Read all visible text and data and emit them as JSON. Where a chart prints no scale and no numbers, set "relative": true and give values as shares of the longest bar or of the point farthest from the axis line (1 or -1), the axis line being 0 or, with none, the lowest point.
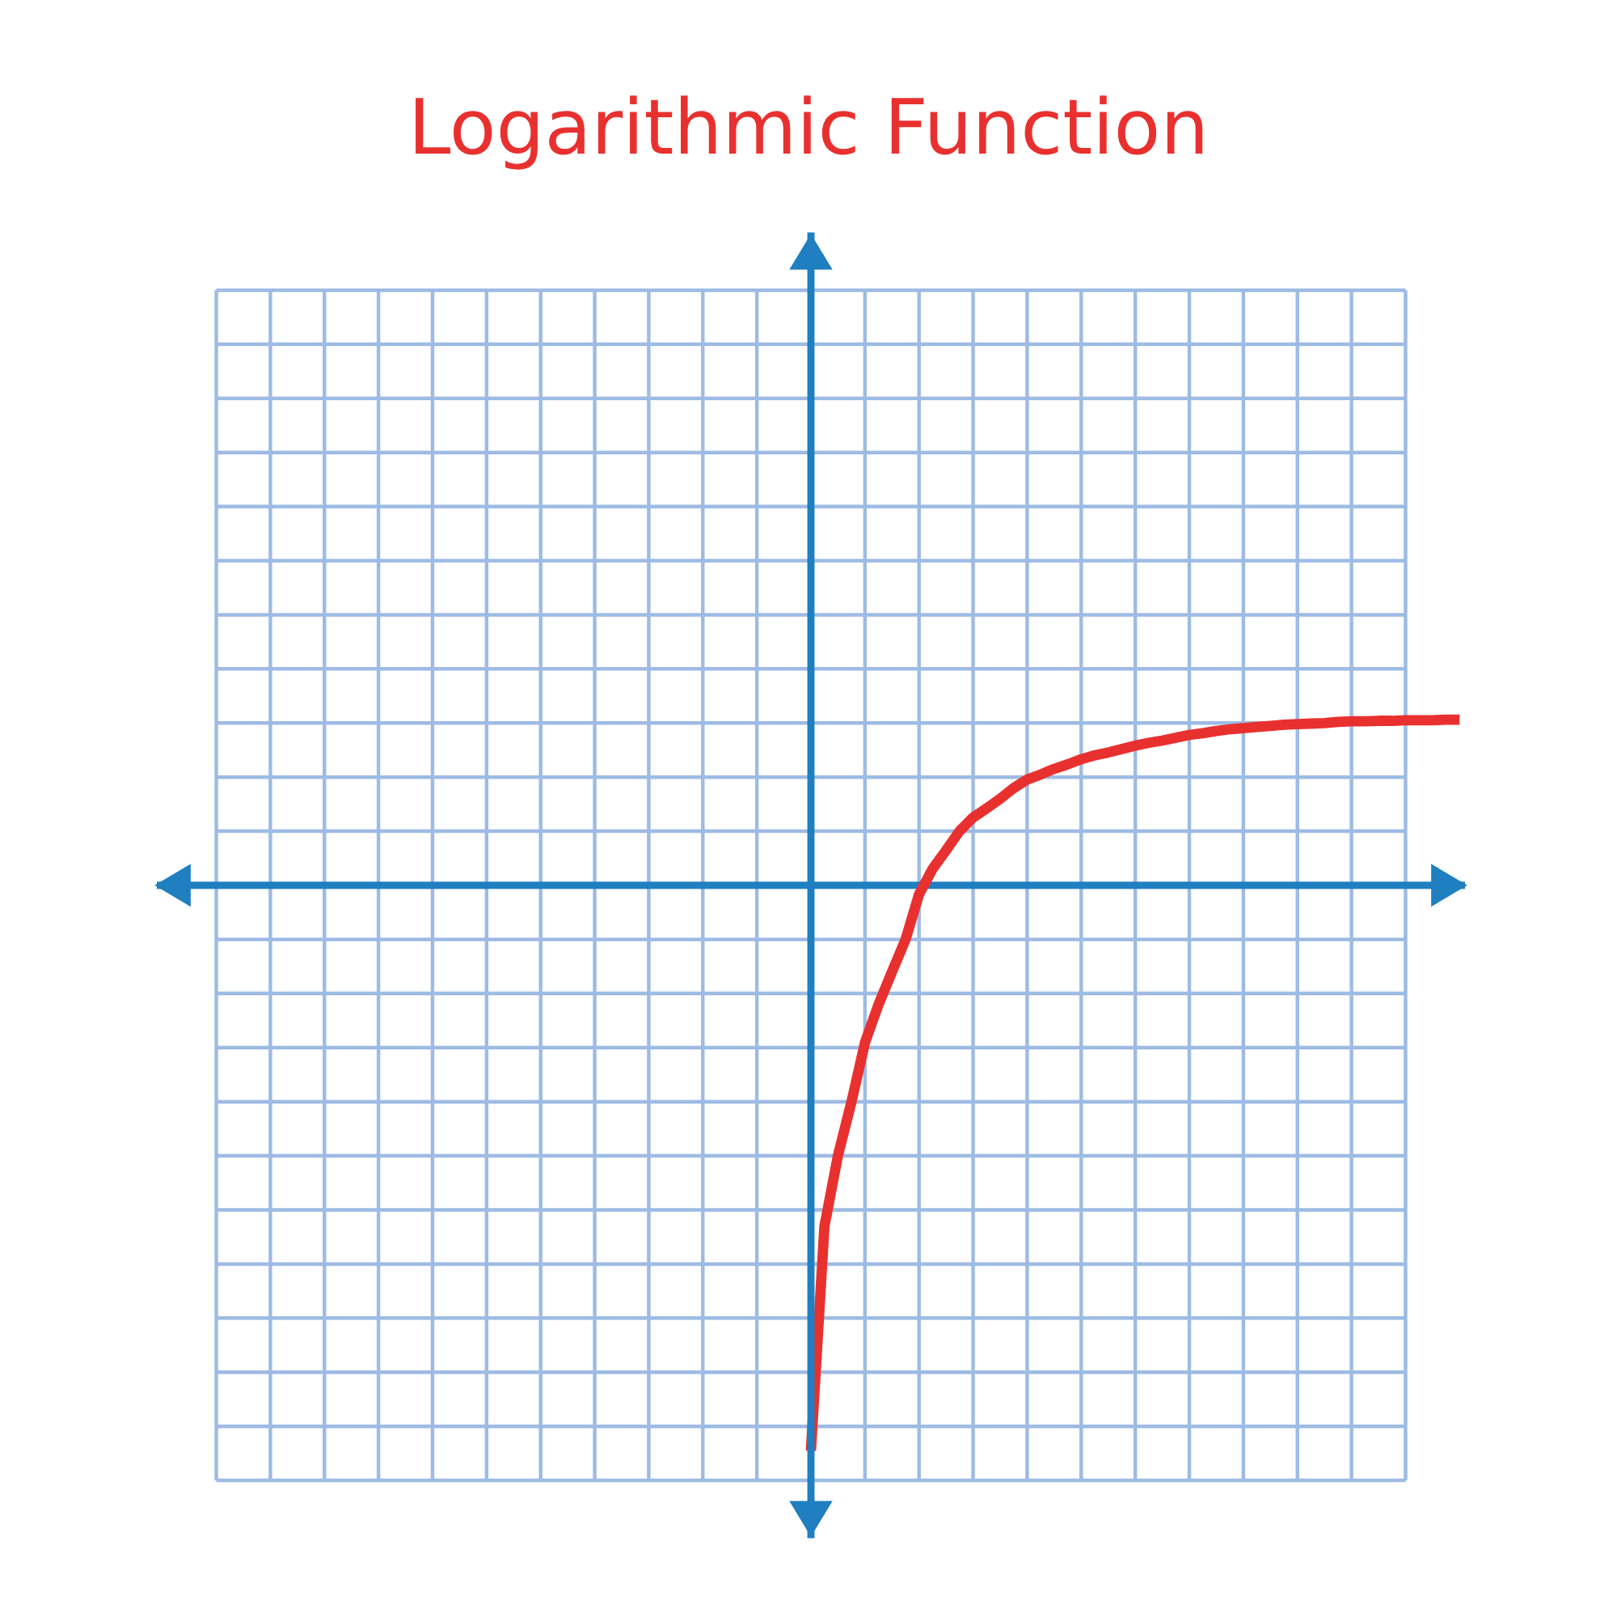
{
  "chart_data": {
    "type": "line",
    "title": "Logarithmic Function",
    "relative": true,
    "grid": true,
    "ref_lines": [
      {
        "axis": "y",
        "value": 0,
        "color": "#1f7fc0"
      }
    ],
    "categories": [
      null,
      null,
      null,
      null,
      null,
      null,
      null,
      null,
      null,
      null,
      null,
      null,
      null,
      null,
      null,
      null,
      null,
      null,
      null,
      null,
      null,
      null,
      null,
      null,
      null,
      null,
      null,
      null,
      null,
      null,
      null,
      null,
      null,
      null,
      null,
      null,
      null,
      null,
      null,
      null,
      null,
      null,
      null,
      null,
      null,
      null,
      null,
      null,
      null
    ],
    "series": [
      {
        "color": "#e8312f",
        "values": [
          -1,
          -0.603,
          -0.478,
          -0.383,
          -0.278,
          -0.211,
          -0.153,
          -0.096,
          -0.016,
          0.029,
          0.062,
          0.096,
          0.12,
          0.136,
          0.153,
          0.172,
          0.187,
          0.196,
          0.206,
          0.214,
          0.223,
          0.23,
          0.235,
          0.241,
          0.247,
          0.252,
          0.256,
          0.261,
          0.266,
          0.269,
          0.273,
          0.276,
          0.278,
          0.28,
          0.282,
          0.284,
          0.285,
          0.286,
          0.287,
          0.289,
          0.29,
          0.29,
          0.291,
          0.291,
          0.292,
          0.292,
          0.292,
          0.293,
          0.293
        ]
      }
    ]
  }
}
